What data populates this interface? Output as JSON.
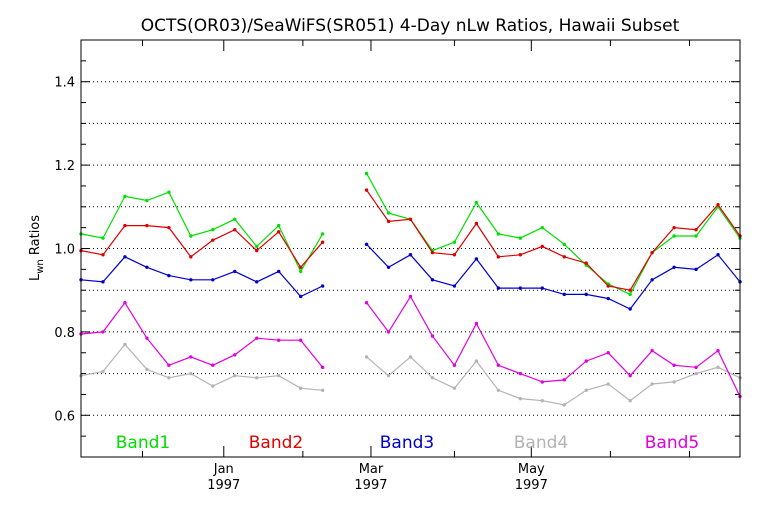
{
  "chart_data": {
    "type": "line",
    "title": "OCTS(OR03)/SeaWiFS(SR051) 4-Day nLw Ratios, Hawaii Subset",
    "xlabel": "",
    "ylabel": "L",
    "ylabel_subscript": "wn",
    "ylabel_suffix": " Ratios",
    "ylim": [
      0.5,
      1.5
    ],
    "yticks": [
      0.6,
      0.8,
      1.0,
      1.2,
      1.4
    ],
    "ytick_labels": [
      "0.6",
      "0.8",
      "1.0",
      "1.2",
      "1.4"
    ],
    "grid": true,
    "xticks": [
      {
        "label": "Jan",
        "sublabel": "1997"
      },
      {
        "label": "Mar",
        "sublabel": "1997"
      },
      {
        "label": "May",
        "sublabel": "1997"
      }
    ],
    "series": [
      {
        "name": "Band1",
        "color": "#00e000",
        "values": [
          1.035,
          1.025,
          1.125,
          1.115,
          1.135,
          1.03,
          1.045,
          1.07,
          1.005,
          1.055,
          0.945,
          1.035,
          null,
          1.18,
          1.085,
          1.07,
          0.995,
          1.015,
          1.11,
          1.035,
          1.025,
          1.05,
          1.01,
          0.96,
          0.915,
          0.89,
          0.99,
          1.03,
          1.03,
          1.1,
          1.025
        ]
      },
      {
        "name": "Band2",
        "color": "#e00000",
        "values": [
          0.995,
          0.985,
          1.055,
          1.055,
          1.05,
          0.98,
          1.02,
          1.045,
          0.995,
          1.04,
          0.955,
          1.015,
          null,
          1.14,
          1.065,
          1.07,
          0.99,
          0.985,
          1.06,
          0.98,
          0.985,
          1.005,
          0.98,
          0.965,
          0.91,
          0.9,
          0.99,
          1.05,
          1.045,
          1.105,
          1.03
        ]
      },
      {
        "name": "Band3",
        "color": "#0000cc",
        "values": [
          0.925,
          0.92,
          0.98,
          0.955,
          0.935,
          0.925,
          0.925,
          0.945,
          0.92,
          0.945,
          0.885,
          0.91,
          null,
          1.01,
          0.955,
          0.985,
          0.925,
          0.91,
          0.975,
          0.905,
          0.905,
          0.905,
          0.89,
          0.89,
          0.88,
          0.855,
          0.925,
          0.955,
          0.95,
          0.985,
          0.92
        ]
      },
      {
        "name": "Band4",
        "color": "#b4b4b4",
        "values": [
          0.695,
          0.705,
          0.77,
          0.71,
          0.69,
          0.7,
          0.67,
          0.695,
          0.69,
          0.695,
          0.665,
          0.66,
          null,
          0.74,
          0.695,
          0.74,
          0.69,
          0.665,
          0.73,
          0.66,
          0.64,
          0.635,
          0.625,
          0.66,
          0.675,
          0.635,
          0.675,
          0.68,
          0.7,
          0.715,
          0.69
        ]
      },
      {
        "name": "Band5",
        "color": "#e000e0",
        "values": [
          0.795,
          0.8,
          0.87,
          0.785,
          0.72,
          0.74,
          0.72,
          0.745,
          0.785,
          0.78,
          0.78,
          0.715,
          null,
          0.87,
          0.8,
          0.885,
          0.79,
          0.72,
          0.82,
          0.72,
          0.7,
          0.68,
          0.685,
          0.73,
          0.75,
          0.695,
          0.755,
          0.72,
          0.715,
          0.755,
          0.645
        ]
      }
    ],
    "legend_placement": "bottom"
  }
}
